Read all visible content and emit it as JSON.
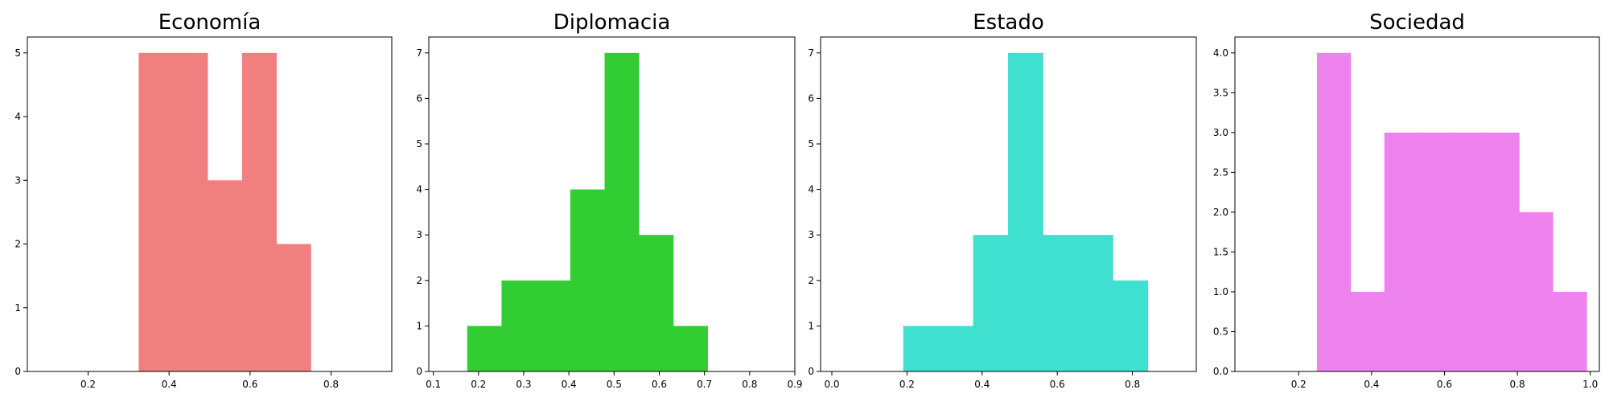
{
  "chart_data": [
    {
      "type": "bar",
      "title": "Economía",
      "xlabel": "",
      "ylabel": "",
      "color": "#f08080",
      "xlim": [
        0.05,
        0.95
      ],
      "ylim": [
        0,
        5.25
      ],
      "xticks": [
        0.2,
        0.4,
        0.6,
        0.8
      ],
      "xtick_labels": [
        "0.2",
        "0.4",
        "0.6",
        "0.8"
      ],
      "yticks": [
        0,
        1,
        2,
        3,
        4,
        5
      ],
      "ytick_labels": [
        "0",
        "1",
        "2",
        "3",
        "4",
        "5"
      ],
      "bins": [
        {
          "x0": 0.325,
          "x1": 0.41,
          "value": 5
        },
        {
          "x0": 0.41,
          "x1": 0.495,
          "value": 5
        },
        {
          "x0": 0.495,
          "x1": 0.58,
          "value": 3
        },
        {
          "x0": 0.58,
          "x1": 0.665,
          "value": 5
        },
        {
          "x0": 0.665,
          "x1": 0.75,
          "value": 2
        }
      ]
    },
    {
      "type": "bar",
      "title": "Diplomacia",
      "xlabel": "",
      "ylabel": "",
      "color": "#32cd32",
      "xlim": [
        0.09,
        0.9
      ],
      "ylim": [
        0,
        7.35
      ],
      "xticks": [
        0.1,
        0.2,
        0.3,
        0.4,
        0.5,
        0.6,
        0.7,
        0.8,
        0.9
      ],
      "xtick_labels": [
        "0.1",
        "0.2",
        "0.3",
        "0.4",
        "0.5",
        "0.6",
        "0.7",
        "0.8",
        "0.9"
      ],
      "yticks": [
        0,
        1,
        2,
        3,
        4,
        5,
        6,
        7
      ],
      "ytick_labels": [
        "0",
        "1",
        "2",
        "3",
        "4",
        "5",
        "6",
        "7"
      ],
      "bins": [
        {
          "x0": 0.175,
          "x1": 0.251,
          "value": 1
        },
        {
          "x0": 0.251,
          "x1": 0.327,
          "value": 2
        },
        {
          "x0": 0.327,
          "x1": 0.403,
          "value": 2
        },
        {
          "x0": 0.403,
          "x1": 0.479,
          "value": 4
        },
        {
          "x0": 0.479,
          "x1": 0.555,
          "value": 7
        },
        {
          "x0": 0.555,
          "x1": 0.631,
          "value": 3
        },
        {
          "x0": 0.631,
          "x1": 0.707,
          "value": 1
        }
      ]
    },
    {
      "type": "bar",
      "title": "Estado",
      "xlabel": "",
      "ylabel": "",
      "color": "#40e0d0",
      "xlim": [
        -0.03,
        0.97
      ],
      "ylim": [
        0,
        7.35
      ],
      "xticks": [
        0.0,
        0.2,
        0.4,
        0.6,
        0.8
      ],
      "xtick_labels": [
        "0.0",
        "0.2",
        "0.4",
        "0.6",
        "0.8"
      ],
      "yticks": [
        0,
        1,
        2,
        3,
        4,
        5,
        6,
        7
      ],
      "ytick_labels": [
        "0",
        "1",
        "2",
        "3",
        "4",
        "5",
        "6",
        "7"
      ],
      "bins": [
        {
          "x0": 0.19,
          "x1": 0.283,
          "value": 1
        },
        {
          "x0": 0.283,
          "x1": 0.376,
          "value": 1
        },
        {
          "x0": 0.376,
          "x1": 0.469,
          "value": 3
        },
        {
          "x0": 0.469,
          "x1": 0.562,
          "value": 7
        },
        {
          "x0": 0.562,
          "x1": 0.655,
          "value": 3
        },
        {
          "x0": 0.655,
          "x1": 0.748,
          "value": 3
        },
        {
          "x0": 0.748,
          "x1": 0.841,
          "value": 2
        }
      ]
    },
    {
      "type": "bar",
      "title": "Sociedad",
      "xlabel": "",
      "ylabel": "",
      "color": "#ee82ee",
      "xlim": [
        0.025,
        1.025
      ],
      "ylim": [
        0,
        4.2
      ],
      "xticks": [
        0.2,
        0.4,
        0.6,
        0.8,
        1.0
      ],
      "xtick_labels": [
        "0.2",
        "0.4",
        "0.6",
        "0.8",
        "1.0"
      ],
      "yticks": [
        0.0,
        0.5,
        1.0,
        1.5,
        2.0,
        2.5,
        3.0,
        3.5,
        4.0
      ],
      "ytick_labels": [
        "0.0",
        "0.5",
        "1.0",
        "1.5",
        "2.0",
        "2.5",
        "3.0",
        "3.5",
        "4.0"
      ],
      "bins": [
        {
          "x0": 0.25,
          "x1": 0.3425,
          "value": 4
        },
        {
          "x0": 0.3425,
          "x1": 0.435,
          "value": 1
        },
        {
          "x0": 0.435,
          "x1": 0.5275,
          "value": 3
        },
        {
          "x0": 0.5275,
          "x1": 0.62,
          "value": 3
        },
        {
          "x0": 0.62,
          "x1": 0.7125,
          "value": 3
        },
        {
          "x0": 0.7125,
          "x1": 0.805,
          "value": 3
        },
        {
          "x0": 0.805,
          "x1": 0.8975,
          "value": 2
        },
        {
          "x0": 0.8975,
          "x1": 0.99,
          "value": 1
        }
      ]
    }
  ]
}
